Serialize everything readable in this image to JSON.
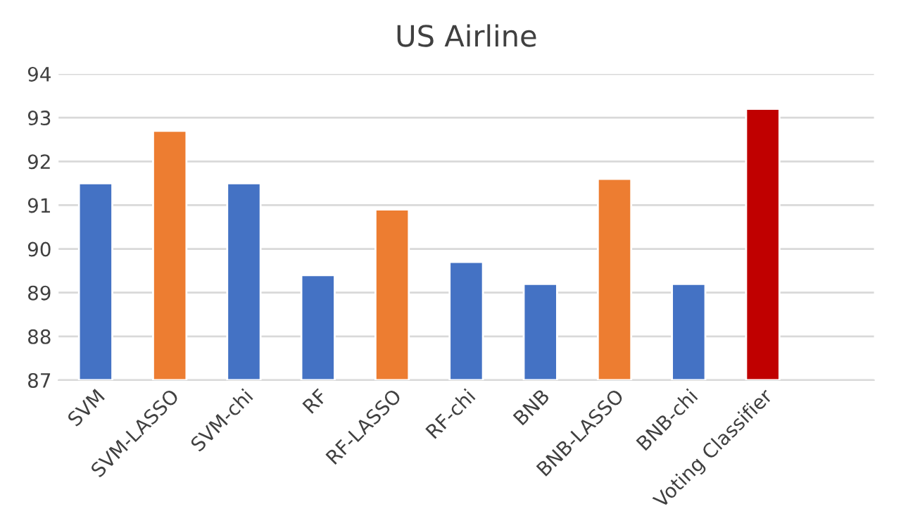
{
  "chart_data": {
    "type": "bar",
    "title": "US Airline",
    "categories": [
      "SVM",
      "SVM-LASSO",
      "SVM-chi",
      "RF",
      "RF-LASSO",
      "RF-chi",
      "BNB",
      "BNB-LASSO",
      "BNB-chi",
      "Voting Classifier",
      null
    ],
    "values": [
      91.5,
      92.7,
      91.5,
      89.4,
      90.9,
      89.7,
      89.2,
      91.6,
      89.2,
      93.2,
      null
    ],
    "colors": [
      "#4472c4",
      "#ed7d31",
      "#4472c4",
      "#4472c4",
      "#ed7d31",
      "#4472c4",
      "#4472c4",
      "#ed7d31",
      "#4472c4",
      "#c00000",
      "#4472c4"
    ],
    "ylim": [
      87,
      94
    ],
    "yticks": [
      87,
      88,
      89,
      90,
      91,
      92,
      93,
      94
    ],
    "grid": "y"
  }
}
